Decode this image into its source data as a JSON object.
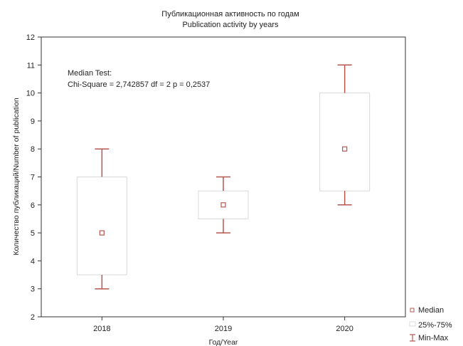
{
  "chart_data": {
    "type": "box",
    "title": "Публикационная активность по годам",
    "subtitle": "Publication activity by years",
    "xlabel": "Год/Year",
    "ylabel": "Количество публикаций/Number of publication",
    "categories": [
      "2018",
      "2019",
      "2020"
    ],
    "ylim": [
      2,
      12
    ],
    "yticks": [
      2,
      3,
      4,
      5,
      6,
      7,
      8,
      9,
      10,
      11,
      12
    ],
    "grid": false,
    "legend_position": "bottom-right",
    "boxes": [
      {
        "category": "2018",
        "median": 5,
        "q1": 3.5,
        "q3": 7,
        "min": 3,
        "max": 8
      },
      {
        "category": "2019",
        "median": 6,
        "q1": 5.5,
        "q3": 6.5,
        "min": 5,
        "max": 7
      },
      {
        "category": "2020",
        "median": 8,
        "q1": 6.5,
        "q3": 10,
        "min": 6,
        "max": 11
      }
    ],
    "annotation": [
      "Median Test:",
      "Chi-Square = 2,742857 df = 2 p = 0,2537"
    ],
    "legend": [
      "Median",
      "25%-75%",
      "Min-Max"
    ],
    "colors": {
      "whisker": "#b5574f",
      "median_marker": "#b5574f",
      "box_edge": "#d9d9d9",
      "axis": "#333333"
    }
  }
}
